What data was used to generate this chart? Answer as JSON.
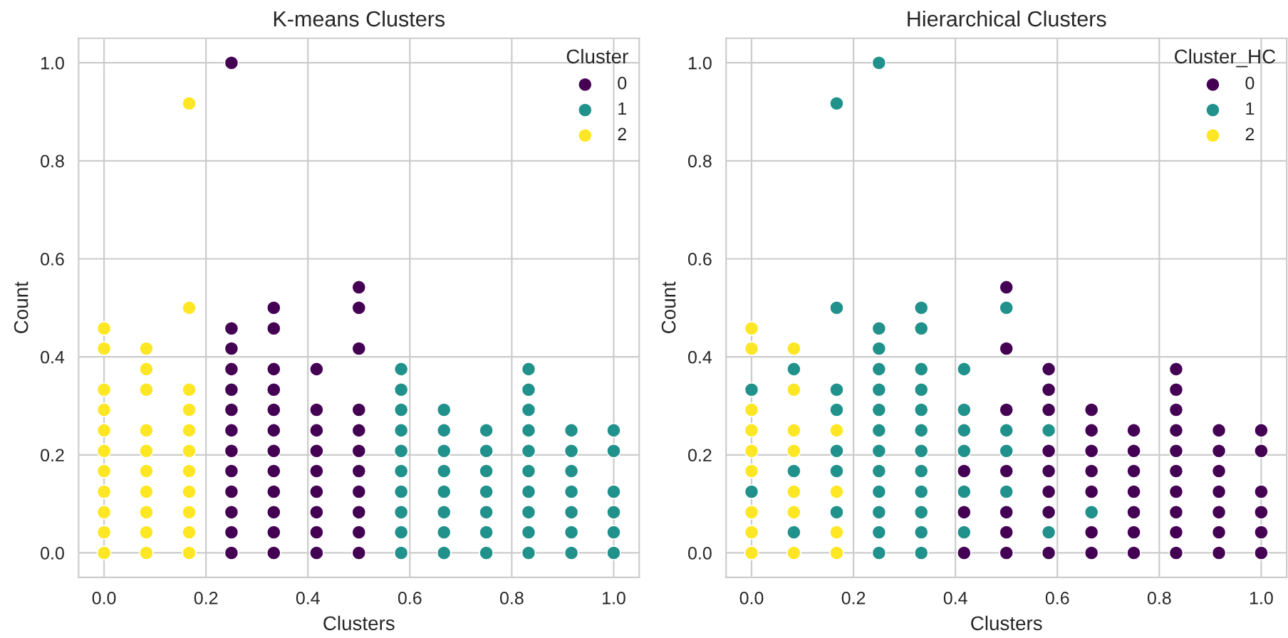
{
  "chart_data": [
    {
      "type": "scatter",
      "title": "K-means Clusters",
      "xlabel": "Clusters",
      "ylabel": "Count",
      "legend_title": "Cluster",
      "legend": "top right",
      "grid": true,
      "marker": "circle",
      "xlim": [
        -0.05,
        1.05
      ],
      "ylim": [
        -0.05,
        1.05
      ],
      "xticks": [
        {
          "value": 0,
          "label": "0.0"
        },
        {
          "value": 0.2,
          "label": "0.2"
        },
        {
          "value": 0.4,
          "label": "0.4"
        },
        {
          "value": 0.6,
          "label": "0.6"
        },
        {
          "value": 0.8,
          "label": "0.8"
        },
        {
          "value": 1,
          "label": "1.0"
        }
      ],
      "yticks": [
        {
          "value": 0,
          "label": "0.0"
        },
        {
          "value": 0.2,
          "label": "0.2"
        },
        {
          "value": 0.4,
          "label": "0.4"
        },
        {
          "value": 0.6,
          "label": "0.6"
        },
        {
          "value": 0.8,
          "label": "0.8"
        },
        {
          "value": 1,
          "label": "1.0"
        }
      ],
      "series": [
        {
          "name": "0",
          "color": "#440154",
          "x": [
            0.25,
            0.25,
            0.25,
            0.25,
            0.25,
            0.25,
            0.25,
            0.25,
            0.25,
            0.25,
            0.25,
            0.25,
            0.25,
            0.333,
            0.333,
            0.333,
            0.333,
            0.333,
            0.333,
            0.333,
            0.333,
            0.333,
            0.333,
            0.333,
            0.333,
            0.417,
            0.417,
            0.417,
            0.417,
            0.417,
            0.417,
            0.417,
            0.417,
            0.417,
            0.5,
            0.5,
            0.5,
            0.5,
            0.5,
            0.5,
            0.5,
            0.5,
            0.5,
            0.5,
            0.5
          ],
          "values": [
            0,
            0.042,
            0.083,
            0.125,
            0.167,
            0.208,
            0.25,
            0.292,
            0.333,
            0.375,
            0.417,
            0.458,
            1.0,
            0,
            0.042,
            0.083,
            0.125,
            0.167,
            0.208,
            0.25,
            0.292,
            0.333,
            0.375,
            0.458,
            0.5,
            0,
            0.042,
            0.083,
            0.125,
            0.167,
            0.208,
            0.25,
            0.292,
            0.375,
            0,
            0.042,
            0.083,
            0.125,
            0.167,
            0.208,
            0.25,
            0.292,
            0.417,
            0.5,
            0.542
          ]
        },
        {
          "name": "1",
          "color": "#21918c",
          "x": [
            0.583,
            0.583,
            0.583,
            0.583,
            0.583,
            0.583,
            0.583,
            0.583,
            0.583,
            0.583,
            0.667,
            0.667,
            0.667,
            0.667,
            0.667,
            0.667,
            0.667,
            0.667,
            0.75,
            0.75,
            0.75,
            0.75,
            0.75,
            0.75,
            0.75,
            0.833,
            0.833,
            0.833,
            0.833,
            0.833,
            0.833,
            0.833,
            0.833,
            0.833,
            0.833,
            0.917,
            0.917,
            0.917,
            0.917,
            0.917,
            0.917,
            0.917,
            1.0,
            1.0,
            1.0,
            1.0,
            1.0,
            1.0
          ],
          "values": [
            0,
            0.042,
            0.083,
            0.125,
            0.167,
            0.208,
            0.25,
            0.292,
            0.333,
            0.375,
            0,
            0.042,
            0.083,
            0.125,
            0.167,
            0.208,
            0.25,
            0.292,
            0,
            0.042,
            0.083,
            0.125,
            0.167,
            0.208,
            0.25,
            0,
            0.042,
            0.083,
            0.125,
            0.167,
            0.208,
            0.25,
            0.292,
            0.333,
            0.375,
            0,
            0.042,
            0.083,
            0.125,
            0.167,
            0.208,
            0.25,
            0,
            0.042,
            0.083,
            0.125,
            0.208,
            0.25
          ]
        },
        {
          "name": "2",
          "color": "#fde725",
          "x": [
            0,
            0,
            0,
            0,
            0,
            0,
            0,
            0,
            0,
            0,
            0,
            0.083,
            0.083,
            0.083,
            0.083,
            0.083,
            0.083,
            0.083,
            0.083,
            0.083,
            0.083,
            0.167,
            0.167,
            0.167,
            0.167,
            0.167,
            0.167,
            0.167,
            0.167,
            0.167,
            0.167,
            0.167
          ],
          "values": [
            0,
            0.042,
            0.083,
            0.125,
            0.167,
            0.208,
            0.25,
            0.292,
            0.333,
            0.417,
            0.458,
            0,
            0.042,
            0.083,
            0.125,
            0.167,
            0.208,
            0.25,
            0.333,
            0.375,
            0.417,
            0,
            0.042,
            0.083,
            0.125,
            0.167,
            0.208,
            0.25,
            0.292,
            0.333,
            0.5,
            0.917
          ]
        }
      ]
    },
    {
      "type": "scatter",
      "title": "Hierarchical Clusters",
      "xlabel": "Clusters",
      "ylabel": "Count",
      "legend_title": "Cluster_HC",
      "legend": "top right",
      "grid": true,
      "marker": "circle",
      "xlim": [
        -0.05,
        1.05
      ],
      "ylim": [
        -0.05,
        1.05
      ],
      "xticks": [
        {
          "value": 0,
          "label": "0.0"
        },
        {
          "value": 0.2,
          "label": "0.2"
        },
        {
          "value": 0.4,
          "label": "0.4"
        },
        {
          "value": 0.6,
          "label": "0.6"
        },
        {
          "value": 0.8,
          "label": "0.8"
        },
        {
          "value": 1,
          "label": "1.0"
        }
      ],
      "yticks": [
        {
          "value": 0,
          "label": "0.0"
        },
        {
          "value": 0.2,
          "label": "0.2"
        },
        {
          "value": 0.4,
          "label": "0.4"
        },
        {
          "value": 0.6,
          "label": "0.6"
        },
        {
          "value": 0.8,
          "label": "0.8"
        },
        {
          "value": 1,
          "label": "1.0"
        }
      ],
      "series": [
        {
          "name": "0",
          "color": "#440154",
          "x": [
            0.417,
            0.417,
            0.417,
            0.5,
            0.5,
            0.5,
            0.5,
            0.5,
            0.5,
            0.5,
            0.583,
            0.583,
            0.583,
            0.583,
            0.583,
            0.583,
            0.583,
            0.583,
            0.667,
            0.667,
            0.667,
            0.667,
            0.667,
            0.667,
            0.667,
            0.75,
            0.75,
            0.75,
            0.75,
            0.75,
            0.75,
            0.75,
            0.833,
            0.833,
            0.833,
            0.833,
            0.833,
            0.833,
            0.833,
            0.833,
            0.833,
            0.833,
            0.917,
            0.917,
            0.917,
            0.917,
            0.917,
            0.917,
            0.917,
            1.0,
            1.0,
            1.0,
            1.0,
            1.0,
            1.0
          ],
          "values": [
            0,
            0.083,
            0.167,
            0,
            0.042,
            0.083,
            0.167,
            0.292,
            0.417,
            0.542,
            0,
            0.083,
            0.125,
            0.167,
            0.208,
            0.292,
            0.333,
            0.375,
            0,
            0.042,
            0.125,
            0.167,
            0.208,
            0.25,
            0.292,
            0,
            0.042,
            0.083,
            0.125,
            0.167,
            0.208,
            0.25,
            0,
            0.042,
            0.083,
            0.125,
            0.167,
            0.208,
            0.25,
            0.292,
            0.333,
            0.375,
            0,
            0.042,
            0.083,
            0.125,
            0.167,
            0.208,
            0.25,
            0,
            0.042,
            0.083,
            0.125,
            0.208,
            0.25
          ]
        },
        {
          "name": "1",
          "color": "#21918c",
          "x": [
            0,
            0,
            0.083,
            0.083,
            0.083,
            0.167,
            0.167,
            0.167,
            0.167,
            0.167,
            0.167,
            0.167,
            0.25,
            0.25,
            0.25,
            0.25,
            0.25,
            0.25,
            0.25,
            0.25,
            0.25,
            0.25,
            0.25,
            0.25,
            0.25,
            0.333,
            0.333,
            0.333,
            0.333,
            0.333,
            0.333,
            0.333,
            0.333,
            0.333,
            0.333,
            0.333,
            0.333,
            0.417,
            0.417,
            0.417,
            0.417,
            0.417,
            0.417,
            0.5,
            0.5,
            0.5,
            0.5,
            0.583,
            0.583,
            0.667
          ],
          "values": [
            0.125,
            0.333,
            0.042,
            0.167,
            0.375,
            0.083,
            0.167,
            0.208,
            0.292,
            0.333,
            0.5,
            0.917,
            0,
            0.042,
            0.083,
            0.125,
            0.167,
            0.208,
            0.25,
            0.292,
            0.333,
            0.375,
            0.417,
            0.458,
            1.0,
            0,
            0.042,
            0.083,
            0.125,
            0.167,
            0.208,
            0.25,
            0.292,
            0.333,
            0.375,
            0.458,
            0.5,
            0.042,
            0.125,
            0.208,
            0.25,
            0.292,
            0.375,
            0.125,
            0.208,
            0.25,
            0.5,
            0.042,
            0.25,
            0.083
          ]
        },
        {
          "name": "2",
          "color": "#fde725",
          "x": [
            0,
            0,
            0,
            0,
            0,
            0,
            0,
            0,
            0,
            0.083,
            0.083,
            0.083,
            0.083,
            0.083,
            0.083,
            0.083,
            0.167,
            0.167,
            0.167,
            0.167
          ],
          "values": [
            0,
            0.042,
            0.083,
            0.167,
            0.208,
            0.25,
            0.292,
            0.417,
            0.458,
            0,
            0.083,
            0.125,
            0.208,
            0.25,
            0.333,
            0.417,
            0,
            0.042,
            0.125,
            0.25
          ]
        }
      ]
    }
  ]
}
